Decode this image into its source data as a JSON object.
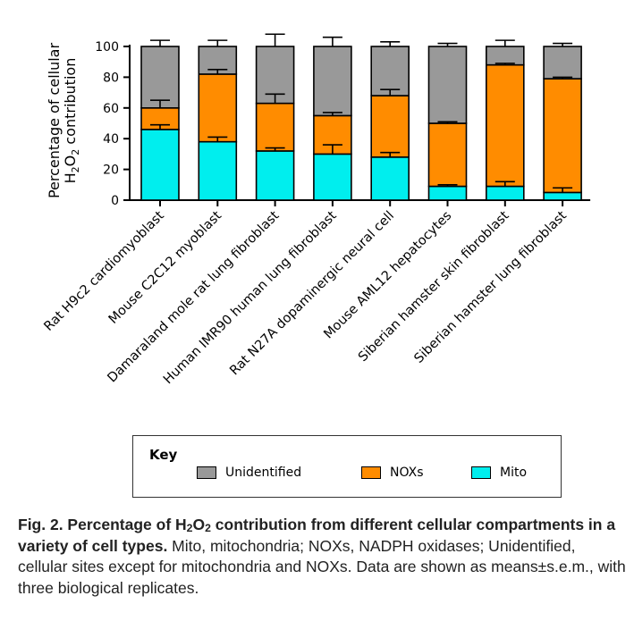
{
  "chart_data": {
    "type": "stacked-bar",
    "ylabel_line1": "Percentage of cellular",
    "ylabel_line2_prefix": "H",
    "ylabel_line2_sub1": "2",
    "ylabel_line2_mid": "O",
    "ylabel_line2_sub2": "2",
    "ylabel_line2_suffix": " contribution",
    "ylim": [
      0,
      100
    ],
    "yticks": [
      0,
      20,
      40,
      60,
      80,
      100
    ],
    "categories": [
      "Rat H9c2 cardiomyoblast",
      "Mouse C2C12 myoblast",
      "Damaraland mole rat lung fibroblast",
      "Human IMR90 human lung fibroblast",
      "Rat N27A dopaminergic neural cell",
      "Mouse AML12 hepatocytes",
      "Siberian hamster skin fibroblast",
      "Siberian hamster lung fibroblast"
    ],
    "series": [
      {
        "name": "Mito",
        "color": "#00eeee",
        "values": [
          46,
          38,
          32,
          30,
          28,
          9,
          9,
          5
        ],
        "errors": [
          3,
          3,
          2,
          6,
          3,
          1,
          3,
          3
        ]
      },
      {
        "name": "NOXs",
        "color": "#ff8c00",
        "values": [
          14,
          44,
          31,
          25,
          40,
          41,
          79,
          74
        ],
        "errors": [
          5,
          3,
          6,
          2,
          4,
          1,
          1,
          1
        ]
      },
      {
        "name": "Unidentified",
        "color": "#999999",
        "values": [
          40,
          18,
          37,
          45,
          32,
          50,
          12,
          21
        ],
        "errors": [
          4,
          4,
          8,
          6,
          3,
          2,
          4,
          2
        ]
      }
    ]
  },
  "key": {
    "title": "Key",
    "items": [
      {
        "label": "Unidentified",
        "color": "#999999"
      },
      {
        "label": "NOXs",
        "color": "#ff8c00"
      },
      {
        "label": "Mito",
        "color": "#00eeee"
      }
    ]
  },
  "caption": {
    "bold_prefix": "Fig. 2. Percentage of H",
    "bold_sub1": "2",
    "bold_mid": "O",
    "bold_sub2": "2",
    "bold_suffix": " contribution from different cellular compartments in a variety of cell types.",
    "text": " Mito, mitochondria; NOXs, NADPH oxidases; Unidentified, cellular sites except for mitochondria and NOXs. Data are shown as means±s.e.m., with three biological replicates."
  }
}
